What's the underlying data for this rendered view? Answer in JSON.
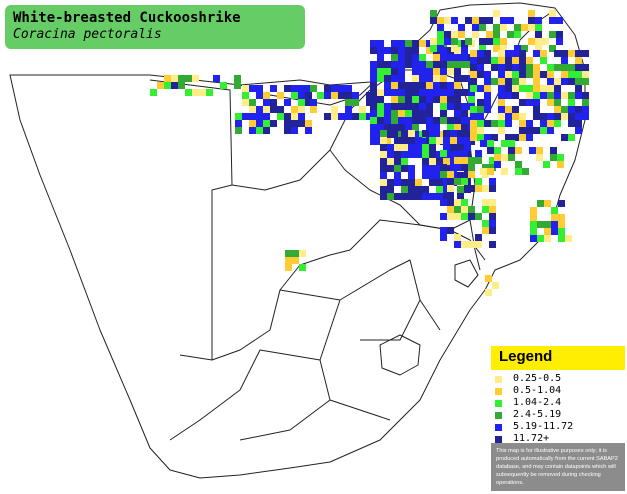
{
  "title": {
    "common_name": "White-breasted Cuckooshrike",
    "scientific_name": "Coracina pectoralis"
  },
  "legend": {
    "title": "Legend",
    "entries": [
      {
        "label": "0.25-0.5",
        "color": "#ffee88"
      },
      {
        "label": "0.5-1.04",
        "color": "#ffcc33"
      },
      {
        "label": "1.04-2.4",
        "color": "#33ee33"
      },
      {
        "label": "2.4-5.19",
        "color": "#33aa33"
      },
      {
        "label": "5.19-11.72",
        "color": "#2222ee"
      },
      {
        "label": "11.72+",
        "color": "#222299"
      }
    ],
    "note": "This map is for illustrative purposes only; it is produced automatically from the current SABAP2 database, and may contain datapoints which will subsequently be removed during checking operations."
  },
  "colors": {
    "title_box": "#66cc66",
    "legend_header": "#ffee00",
    "legend_panel": "#8c8c8c",
    "map_outline": "#222222"
  }
}
